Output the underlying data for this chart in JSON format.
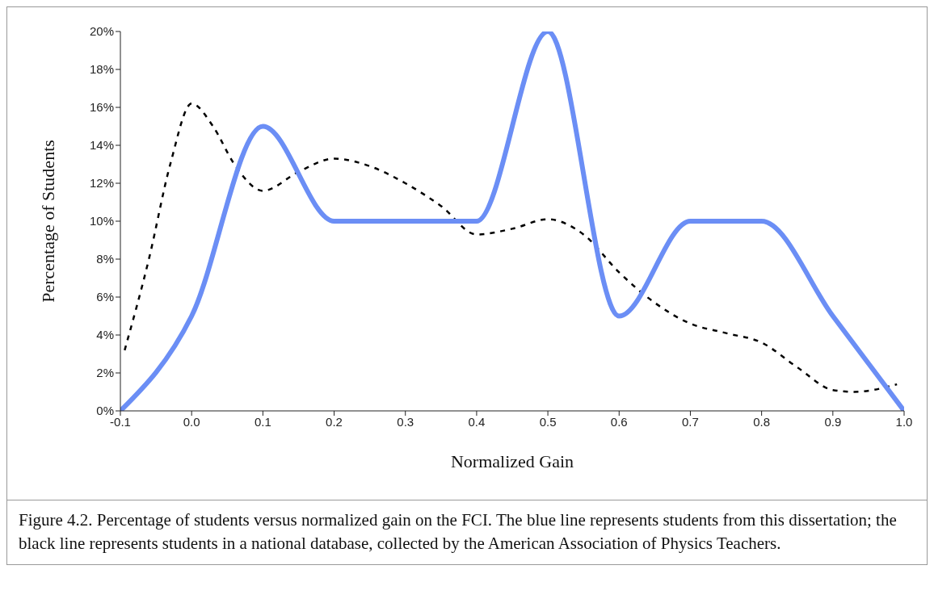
{
  "chart_data": {
    "type": "line",
    "xlabel": "Normalized Gain",
    "ylabel": "Percentage of Students",
    "xlim": [
      -0.1,
      1.0
    ],
    "xticks": [
      -0.1,
      {
        "value": 0,
        "label": "0.0"
      },
      0.1,
      0.2,
      0.3,
      0.4,
      0.5,
      0.6,
      0.7,
      0.8,
      0.9,
      {
        "value": 1,
        "label": "1.0"
      }
    ],
    "ylim": [
      0,
      20
    ],
    "yticks": [
      {
        "value": 0,
        "label": "0%"
      },
      {
        "value": 2,
        "label": "2%"
      },
      {
        "value": 4,
        "label": "4%"
      },
      {
        "value": 6,
        "label": "6%"
      },
      {
        "value": 8,
        "label": "8%"
      },
      {
        "value": 10,
        "label": "10%"
      },
      {
        "value": 12,
        "label": "12%"
      },
      {
        "value": 14,
        "label": "14%"
      },
      {
        "value": 16,
        "label": "16%"
      },
      {
        "value": 18,
        "label": "18%"
      },
      {
        "value": 20,
        "label": "20%"
      }
    ],
    "marker": "none",
    "series": [
      {
        "color": "#000000",
        "line_style": "dashed",
        "x": [
          -0.094,
          -0.06,
          -0.03,
          0.0,
          0.03,
          0.06,
          0.1,
          0.15,
          0.2,
          0.25,
          0.3,
          0.35,
          0.4,
          0.45,
          0.5,
          0.55,
          0.6,
          0.65,
          0.7,
          0.75,
          0.8,
          0.85,
          0.9,
          0.93,
          0.99
        ],
        "values": [
          3.2,
          8,
          13,
          16.2,
          15,
          13,
          11.6,
          12.6,
          13.3,
          12.9,
          12,
          10.8,
          9.3,
          9.6,
          10.1,
          9.3,
          7.3,
          5.7,
          4.6,
          4.1,
          3.6,
          2.3,
          1.1,
          1.0,
          1.4
        ]
      },
      {
        "color": "#6b8ef5",
        "line_style": "solid",
        "x": [
          -0.1,
          0.0,
          0.1,
          0.2,
          0.3,
          0.4,
          0.5,
          0.6,
          0.7,
          0.8,
          0.9,
          1.0
        ],
        "values": [
          0,
          5,
          15,
          10,
          10,
          10,
          20,
          5,
          10,
          10,
          5,
          0
        ]
      }
    ],
    "annotations": [
      "Figure 4.2. Percentage of students versus normalized gain on the FCI. The blue line represents students from this dissertation; the black line represents students in a national database, collected by the American Association of Physics Teachers."
    ]
  }
}
